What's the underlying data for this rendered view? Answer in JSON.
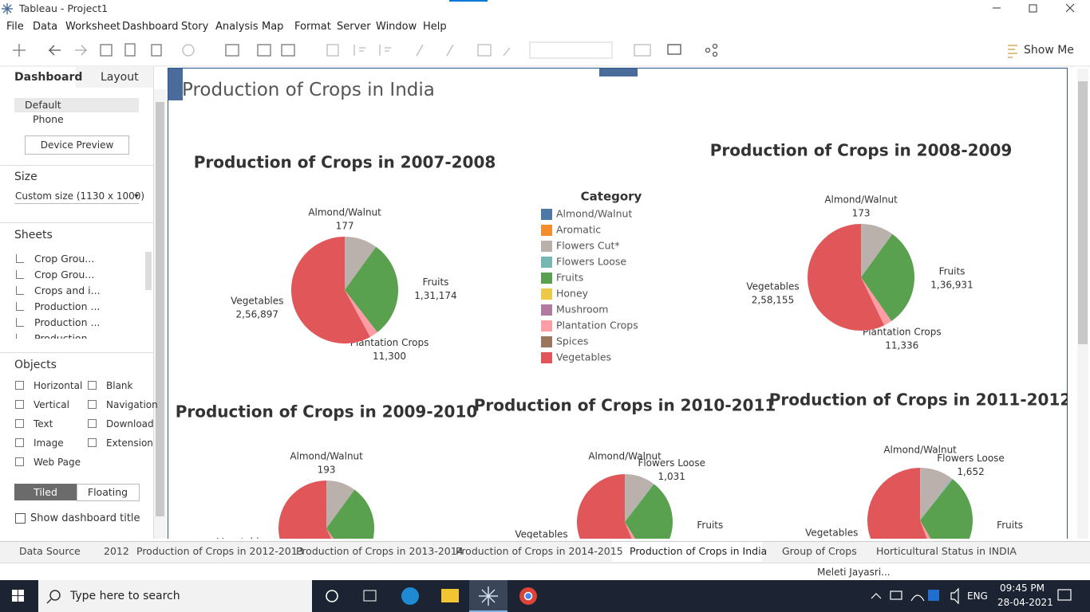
{
  "window": {
    "title": "Tableau - Project1"
  },
  "menu": [
    "File",
    "Data",
    "Worksheet",
    "Dashboard",
    "Story",
    "Analysis",
    "Map",
    "Format",
    "Server",
    "Window",
    "Help"
  ],
  "toolbar": {
    "show_me": "Show Me"
  },
  "side_panel": {
    "tabs": [
      "Dashboard",
      "Layout"
    ],
    "devices": [
      "Default",
      "Phone"
    ],
    "device_preview": "Device Preview",
    "size_heading": "Size",
    "size_value": "Custom size (1130 x 1000)",
    "sheets_heading": "Sheets",
    "sheets": [
      "Crop Grou...",
      "Crop Grou...",
      "Crops and i...",
      "Production ...",
      "Production ...",
      "Production"
    ],
    "objects_heading": "Objects",
    "objects": [
      "Horizontal",
      "Blank",
      "Vertical",
      "Navigation",
      "Text",
      "Download",
      "Image",
      "Extension",
      "Web Page"
    ],
    "layout_modes": [
      "Tiled",
      "Floating"
    ],
    "show_title": "Show dashboard title"
  },
  "dashboard": {
    "title": "Production of Crops in India",
    "legend": {
      "title": "Category",
      "items": [
        {
          "name": "Almond/Walnut",
          "color": "#4e79a7"
        },
        {
          "name": "Aromatic",
          "color": "#f28e2b"
        },
        {
          "name": "Flowers Cut*",
          "color": "#bab0ac"
        },
        {
          "name": "Flowers Loose",
          "color": "#76b7b2"
        },
        {
          "name": "Fruits",
          "color": "#59a14f"
        },
        {
          "name": "Honey",
          "color": "#edc948"
        },
        {
          "name": "Mushroom",
          "color": "#b07aa1"
        },
        {
          "name": "Plantation Crops",
          "color": "#ff9da7"
        },
        {
          "name": "Spices",
          "color": "#9c755f"
        },
        {
          "name": "Vegetables",
          "color": "#e15759"
        }
      ]
    }
  },
  "chart_data": [
    {
      "type": "pie",
      "title": "Production of Crops in 2007-2008",
      "categories": [
        "Almond/Walnut",
        null,
        "Fruits",
        "Plantation Crops",
        "Vegetables"
      ],
      "values": [
        177,
        44000,
        131174,
        11300,
        256897
      ],
      "value_labels": [
        "177",
        null,
        "1,31,174",
        "11,300",
        "2,56,897"
      ],
      "colors": [
        "#4e79a7",
        "#bab0ac",
        "#59a14f",
        "#ff9da7",
        "#e15759"
      ]
    },
    {
      "type": "pie",
      "title": "Production of Crops in 2008-2009",
      "categories": [
        "Almond/Walnut",
        null,
        "Fruits",
        "Plantation Crops",
        "Vegetables"
      ],
      "values": [
        173,
        45000,
        136931,
        11336,
        258155
      ],
      "value_labels": [
        "173",
        null,
        "1,36,931",
        "11,336",
        "2,58,155"
      ],
      "colors": [
        "#4e79a7",
        "#bab0ac",
        "#59a14f",
        "#ff9da7",
        "#e15759"
      ]
    },
    {
      "type": "pie",
      "title": "Production of Crops in 2009-2010",
      "categories": [
        "Almond/Walnut",
        null,
        null,
        null,
        "Vegetables"
      ],
      "values": [
        193,
        46000,
        140000,
        12000,
        262000
      ],
      "value_labels": [
        "193",
        null,
        null,
        null,
        null
      ],
      "colors": [
        "#4e79a7",
        "#bab0ac",
        "#59a14f",
        "#ff9da7",
        "#e15759"
      ]
    },
    {
      "type": "pie",
      "title": "Production of Crops in 2010-2011",
      "categories": [
        "Almond/Walnut",
        null,
        "Flowers Loose",
        "Fruits",
        null,
        "Vegetables"
      ],
      "values": [
        200,
        48000,
        1031,
        145000,
        12000,
        265000
      ],
      "value_labels": [
        null,
        null,
        "1,031",
        null,
        null,
        null
      ],
      "colors": [
        "#4e79a7",
        "#bab0ac",
        "#76b7b2",
        "#59a14f",
        "#ff9da7",
        "#e15759"
      ]
    },
    {
      "type": "pie",
      "title": "Production of Crops in 2011-2012",
      "categories": [
        "Almond/Walnut",
        null,
        "Flowers Loose",
        "Fruits",
        null,
        "Vegetables"
      ],
      "values": [
        210,
        50000,
        1652,
        150000,
        12500,
        270000
      ],
      "value_labels": [
        null,
        null,
        "1,652",
        null,
        null,
        null
      ],
      "colors": [
        "#4e79a7",
        "#bab0ac",
        "#76b7b2",
        "#59a14f",
        "#ff9da7",
        "#e15759"
      ]
    }
  ],
  "tabs": [
    "Data Source",
    "2012",
    "Production of Crops in 2012-2013",
    "Production of Crops in 2013-2014",
    "Production of Crops in 2014-2015",
    "Production of Crops in India",
    "Group of Crops",
    "Horticultural Status in INDIA"
  ],
  "status": {
    "user": "Meleti Jayasri..."
  },
  "taskbar": {
    "search": "Type here to search",
    "language": "ENG",
    "time": "09:45 PM",
    "date": "28-04-2021"
  }
}
